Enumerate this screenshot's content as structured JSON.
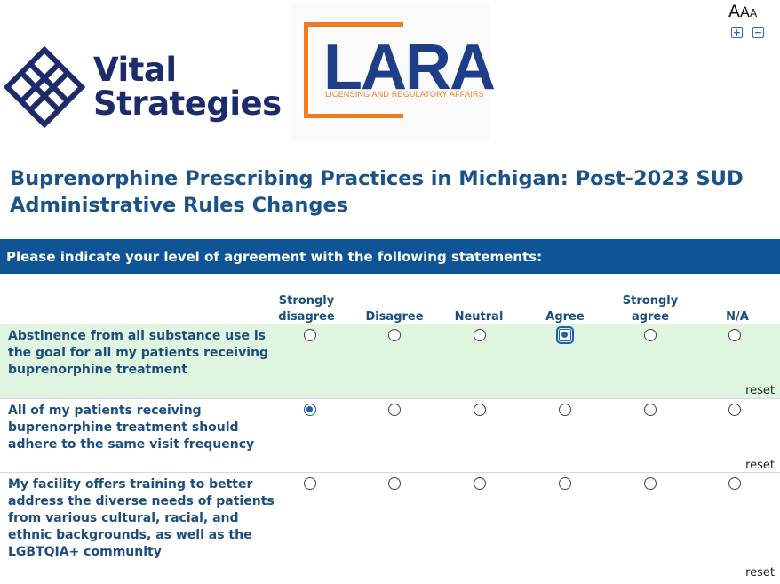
{
  "text_size": {
    "large": "A",
    "medium": "A",
    "small": "A",
    "increase_symbol": "+",
    "decrease_symbol": "−"
  },
  "logos": {
    "vital_strategies": {
      "line1": "Vital",
      "line2": "Strategies"
    },
    "lara": {
      "word": "LARA",
      "subtitle": "LICENSING AND REGULATORY AFFAIRS"
    }
  },
  "survey": {
    "title": "Buprenorphine Prescribing Practices in Michigan: Post-2023 SUD Administrative Rules Changes",
    "question": "Please indicate your level of agreement with the following statements:",
    "columns": [
      "Strongly disagree",
      "Disagree",
      "Neutral",
      "Agree",
      "Strongly agree",
      "N/A"
    ],
    "rows": [
      {
        "label": "Abstinence from all substance use is the goal for all my patients receiving buprenorphine treatment",
        "selected": "Agree",
        "reset": "reset"
      },
      {
        "label": "All of my patients receiving buprenorphine treatment should adhere to the same visit frequency",
        "selected": "Strongly disagree",
        "reset": "reset"
      },
      {
        "label": "My facility offers training to better address the diverse needs of patients from various cultural, racial, and ethnic backgrounds, as well as the LGBTQIA+ community",
        "selected": "",
        "reset": "reset"
      }
    ]
  },
  "colors": {
    "accent": "#0f5596",
    "title": "#1b5389",
    "highlight_row": "#dff5df",
    "lara_orange": "#ee7d22",
    "lara_blue": "#1e3e88",
    "vs_navy": "#1d2b6b"
  }
}
